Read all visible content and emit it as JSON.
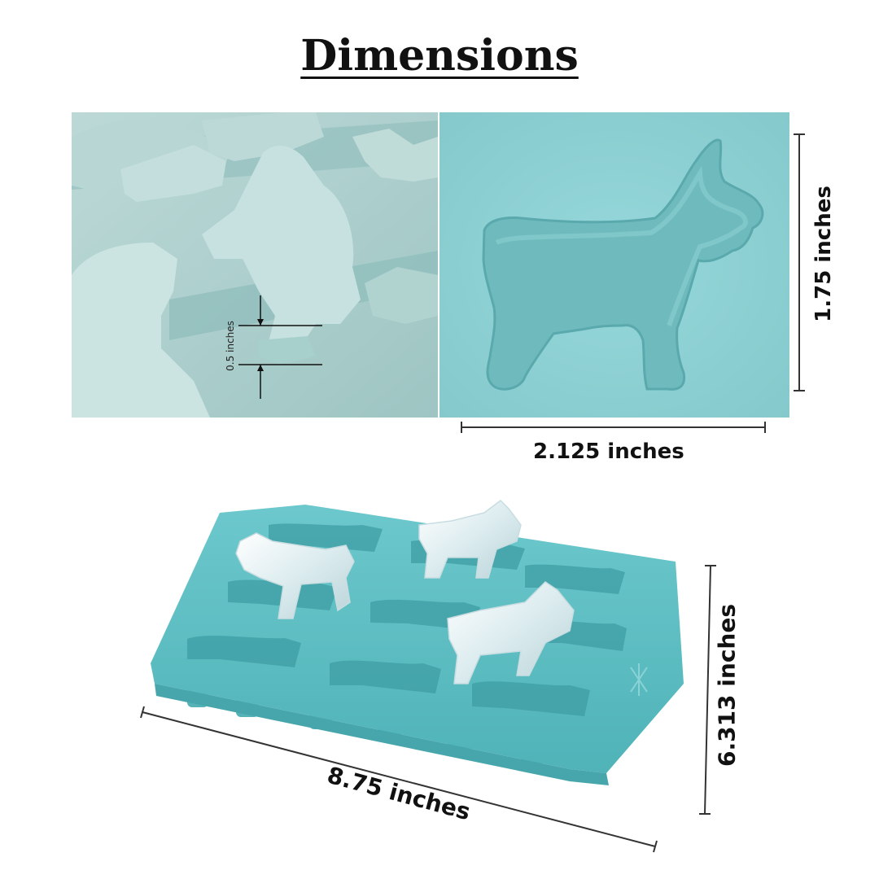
{
  "title": "Dimensions",
  "measurements": {
    "depth": "0.5 inches",
    "mold_height": "1.75 inches",
    "mold_width": "2.125 inches",
    "tray_length": "8.75 inches",
    "tray_width": "6.313 inches"
  },
  "colors": {
    "tray": "#5fc2c6",
    "mold_light": "#a9cdcb",
    "mold_close": "#8fd3d6",
    "ice": "#e8f4f6",
    "text": "#111111"
  }
}
